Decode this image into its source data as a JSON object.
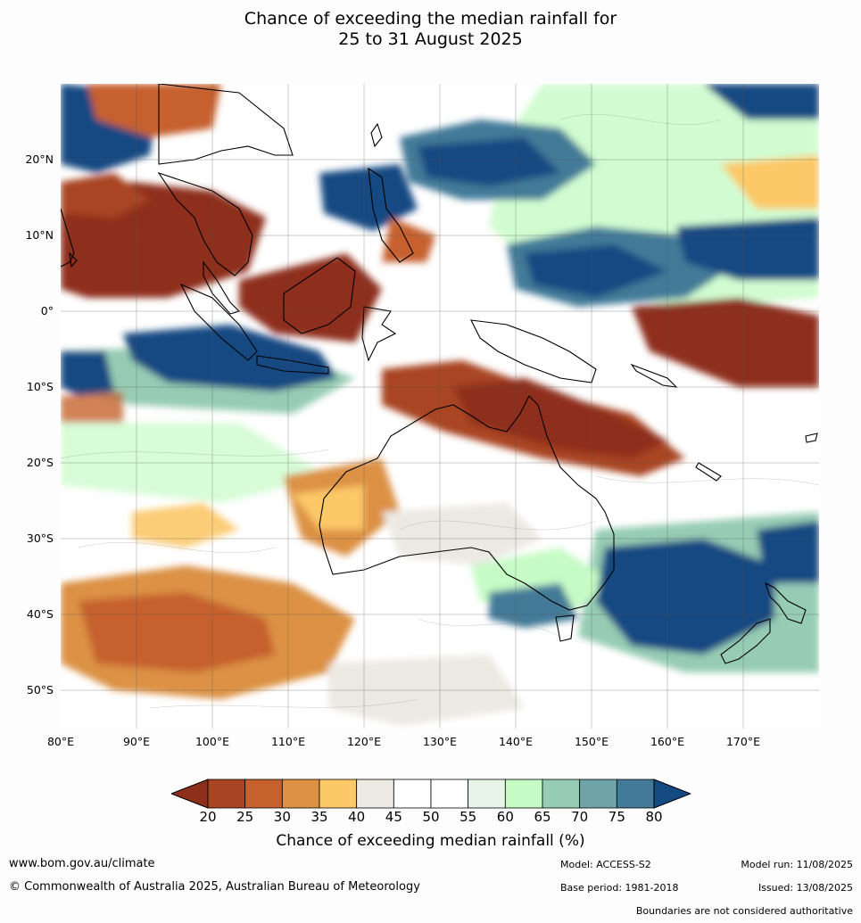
{
  "title_line1": "Chance of exceeding the median rainfall for",
  "title_line2": "25 to 31 August 2025",
  "lat_labels": [
    "20°N",
    "10°N",
    "0°",
    "10°S",
    "20°S",
    "30°S",
    "40°S",
    "50°S"
  ],
  "lon_labels": [
    "80°E",
    "90°E",
    "100°E",
    "110°E",
    "120°E",
    "130°E",
    "140°E",
    "150°E",
    "160°E",
    "170°E"
  ],
  "colorbar": {
    "ticks": [
      "20",
      "25",
      "30",
      "35",
      "40",
      "45",
      "50",
      "55",
      "60",
      "65",
      "70",
      "75",
      "80"
    ],
    "colors": [
      "#8e2f1c",
      "#a94422",
      "#c6612d",
      "#dc9145",
      "#fcc868",
      "#ece9e2",
      "#ffffff",
      "#ffffff",
      "#e7f5e9",
      "#c6fbc6",
      "#96ccb4",
      "#6ea4a8",
      "#427a98",
      "#134a82"
    ],
    "label": "Chance of exceeding median rainfall (%)"
  },
  "footer": {
    "website": "www.bom.gov.au/climate",
    "copyright": "© Commonwealth of Australia 2025, Australian Bureau of Meteorology",
    "model": "Model: ACCESS-S2",
    "base_period": "Base period: 1981-2018",
    "model_run": "Model run: 11/08/2025",
    "issued": "Issued: 13/08/2025",
    "disclaimer": "Boundaries are not considered authoritative"
  }
}
